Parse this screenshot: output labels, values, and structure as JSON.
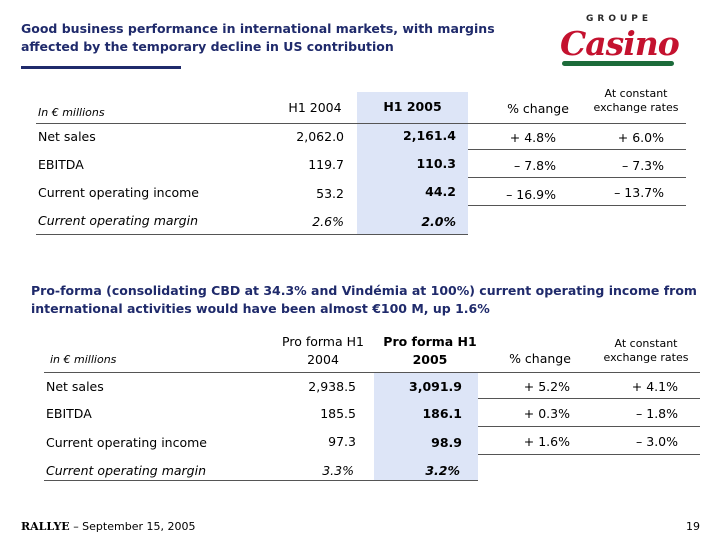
{
  "title": "Good business performance in international markets, with margins affected by the temporary decline in US contribution",
  "logo": {
    "groupe": "GROUPE",
    "casino": "Casino"
  },
  "table1": {
    "unit_label": "In € millions",
    "headers": [
      "H1 2004",
      "H1 2005",
      "% change",
      "At constant exchange rates"
    ],
    "rows": [
      {
        "label": "Net sales",
        "h1_2004": "2,062.0",
        "h1_2005": "2,161.4",
        "change": "+ 4.8%",
        "constant": "+ 6.0%"
      },
      {
        "label": "EBITDA",
        "h1_2004": "119.7",
        "h1_2005": "110.3",
        "change": "– 7.8%",
        "constant": "– 7.3%"
      },
      {
        "label": "Current operating income",
        "h1_2004": "53.2",
        "h1_2005": "44.2",
        "change": "– 16.9%",
        "constant": "– 13.7%"
      },
      {
        "label": "Current operating margin",
        "h1_2004": "2.6%",
        "h1_2005": "2.0%",
        "change": "",
        "constant": ""
      }
    ]
  },
  "proforma_note": "Pro-forma (consolidating CBD at 34.3% and Vindémia at 100%) current operating income from international activities would have been almost €100 M, up 1.6%",
  "table2": {
    "unit_label": "in € millions",
    "headers": [
      "Pro forma H1 2004",
      "Pro forma H1 2005",
      "% change",
      "At constant exchange rates"
    ],
    "rows": [
      {
        "label": "Net sales",
        "h1_2004": "2,938.5",
        "h1_2005": "3,091.9",
        "change": "+ 5.2%",
        "constant": "+ 4.1%"
      },
      {
        "label": "EBITDA",
        "h1_2004": "185.5",
        "h1_2005": "186.1",
        "change": "+ 0.3%",
        "constant": "– 1.8%"
      },
      {
        "label": "Current operating income",
        "h1_2004": "97.3",
        "h1_2005": "98.9",
        "change": "+ 1.6%",
        "constant": "– 3.0%"
      },
      {
        "label": "Current operating margin",
        "h1_2004": "3.3%",
        "h1_2005": "3.2%",
        "change": "",
        "constant": ""
      }
    ]
  },
  "footer": {
    "brand": "RALLYE",
    "date_text": "– September 15, 2005",
    "page": "19"
  },
  "colors": {
    "title": "#1f2a6b",
    "highlight": "#dde5f7",
    "logo_red": "#c4122f",
    "logo_green": "#1c6b3a"
  }
}
